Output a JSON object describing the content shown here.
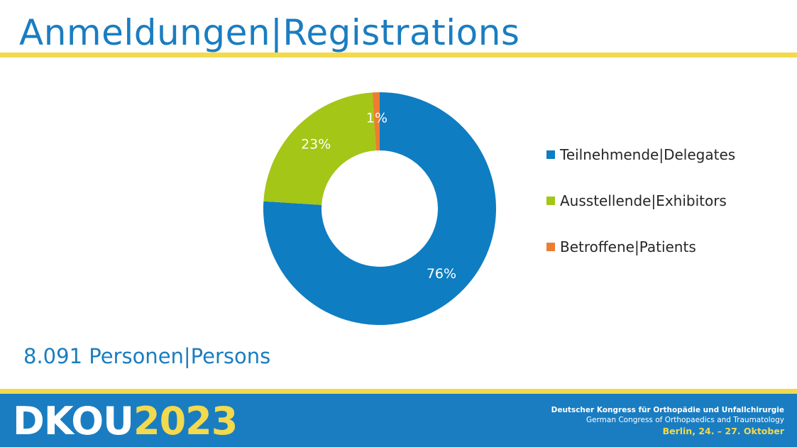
{
  "slide": {
    "title": "Anmeldungen|Registrations",
    "total": "8.091 Personen|Persons"
  },
  "colors": {
    "accent": "#1a7dc1",
    "rule": "#f2d94e"
  },
  "chart_data": {
    "type": "pie",
    "title": "",
    "categories": [
      "Teilnehmende|Delegates",
      "Ausstellende|Exhibitors",
      "Betroffene|Patients"
    ],
    "values": [
      76,
      23,
      1
    ],
    "data_labels": [
      "76%",
      "23%",
      "1%"
    ],
    "colors": [
      "#0f7dc1",
      "#a3c617",
      "#ed7d31"
    ],
    "legend": "right",
    "donut": true
  },
  "footer": {
    "logo_text": "DKOU",
    "logo_year": "2023",
    "congress_de": "Deutscher Kongress für Orthopädie und Unfallchirurgie",
    "congress_en": "German Congress of Orthopaedics and Traumatology",
    "dates": "Berlin, 24. – 27. Oktober"
  }
}
